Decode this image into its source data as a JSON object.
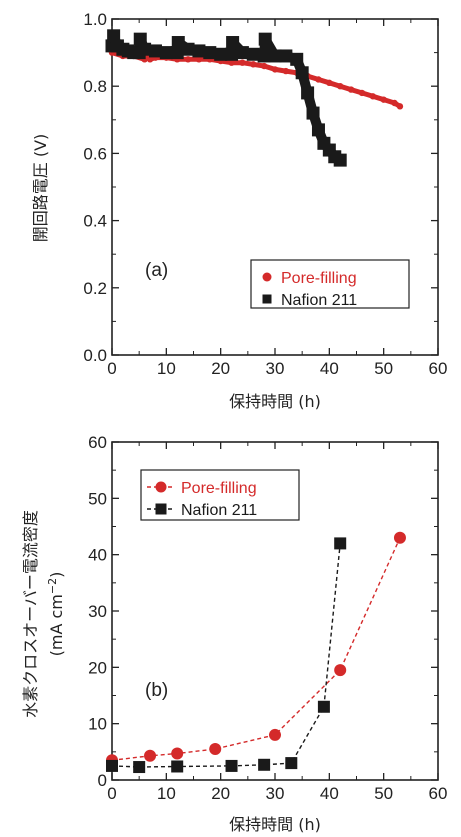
{
  "colors": {
    "pore": "#d42a2a",
    "nafion": "#1a1a1a",
    "axis": "#222222"
  },
  "chart_data": [
    {
      "type": "line",
      "panel_label": "(a)",
      "xlabel": "保持時間 (h)",
      "ylabel": "開回路電圧 (V)",
      "xlim": [
        0,
        60
      ],
      "ylim": [
        0.0,
        1.0
      ],
      "xticks": [
        "0",
        "10",
        "20",
        "30",
        "40",
        "50",
        "60"
      ],
      "yticks": [
        "0.0",
        "0.2",
        "0.4",
        "0.6",
        "0.8",
        "1.0"
      ],
      "legend": "bottom-right",
      "series": [
        {
          "name": "Pore-filling",
          "marker": "circle",
          "line": "solid",
          "x": [
            0,
            2,
            4,
            6,
            6.5,
            7,
            8,
            10,
            12,
            14,
            16,
            18,
            20,
            22,
            24,
            26,
            28,
            30,
            32,
            34,
            36,
            38,
            40,
            42,
            44,
            46,
            48,
            50,
            52,
            53
          ],
          "y": [
            0.9,
            0.89,
            0.89,
            0.88,
            0.9,
            0.88,
            0.885,
            0.885,
            0.88,
            0.88,
            0.88,
            0.88,
            0.875,
            0.87,
            0.87,
            0.865,
            0.86,
            0.85,
            0.845,
            0.84,
            0.83,
            0.82,
            0.81,
            0.8,
            0.79,
            0.78,
            0.77,
            0.76,
            0.75,
            0.74
          ]
        },
        {
          "name": "Nafion 211",
          "marker": "square",
          "line": "solid",
          "x": [
            0,
            0.3,
            1,
            2,
            3,
            4,
            5,
            5.2,
            6,
            8,
            10,
            12,
            12.2,
            14,
            16,
            18,
            20,
            22,
            22.2,
            24,
            26,
            28,
            28.2,
            30,
            32,
            34,
            35,
            36,
            37,
            38,
            39,
            40,
            41,
            42
          ],
          "y": [
            0.92,
            0.95,
            0.92,
            0.91,
            0.905,
            0.9,
            0.9,
            0.94,
            0.91,
            0.905,
            0.9,
            0.9,
            0.93,
            0.91,
            0.905,
            0.9,
            0.895,
            0.895,
            0.93,
            0.9,
            0.895,
            0.89,
            0.94,
            0.89,
            0.89,
            0.88,
            0.84,
            0.78,
            0.72,
            0.67,
            0.63,
            0.61,
            0.59,
            0.58
          ]
        }
      ]
    },
    {
      "type": "line",
      "panel_label": "(b)",
      "xlabel": "保持時間 (h)",
      "ylabel": "水素クロスオーバー電流密度",
      "ylabel_unit_main": "(mA cm",
      "ylabel_unit_sup": "−2",
      "ylabel_unit_close": ")",
      "xlim": [
        0,
        60
      ],
      "ylim": [
        0,
        60
      ],
      "xticks": [
        "0",
        "10",
        "20",
        "30",
        "40",
        "50",
        "60"
      ],
      "yticks": [
        "0",
        "10",
        "20",
        "30",
        "40",
        "50",
        "60"
      ],
      "legend": "top-left",
      "series": [
        {
          "name": "Pore-filling",
          "marker": "circle",
          "line": "dashed",
          "x": [
            0,
            7,
            12,
            19,
            30,
            42,
            53
          ],
          "y": [
            3.5,
            4.3,
            4.7,
            5.5,
            8.0,
            19.5,
            43.0
          ]
        },
        {
          "name": "Nafion 211",
          "marker": "square",
          "line": "dashed",
          "x": [
            0,
            5,
            12,
            22,
            28,
            33,
            39,
            42
          ],
          "y": [
            2.5,
            2.3,
            2.4,
            2.5,
            2.7,
            3.0,
            13.0,
            42.0
          ]
        }
      ]
    }
  ]
}
